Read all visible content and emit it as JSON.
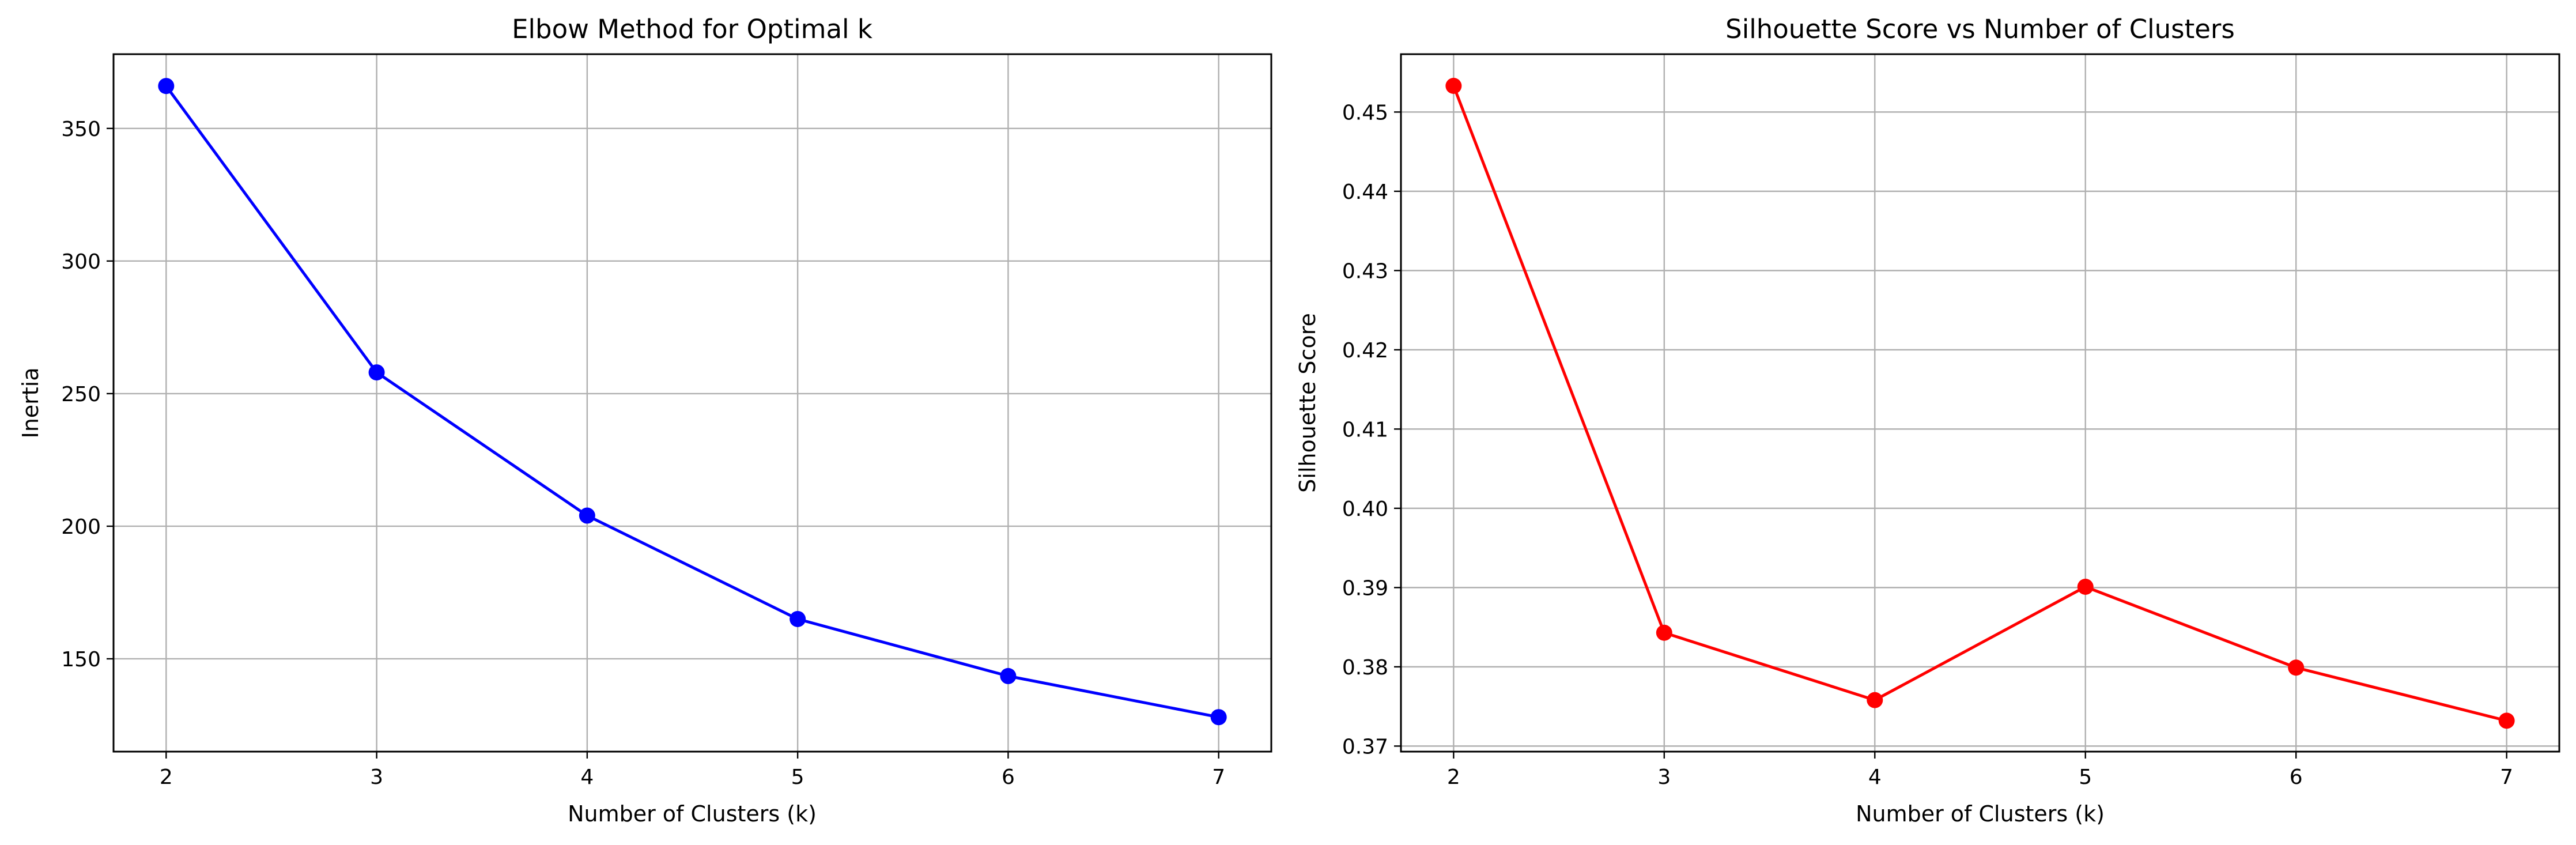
{
  "chart_data": [
    {
      "type": "line",
      "title": "Elbow Method for Optimal k",
      "xlabel": "Number of Clusters (k)",
      "ylabel": "Inertia",
      "xlim": [
        1.75,
        7.25
      ],
      "ylim": [
        115,
        378
      ],
      "xticks": [
        2,
        3,
        4,
        5,
        6,
        7
      ],
      "yticks": [
        150,
        200,
        250,
        300,
        350
      ],
      "ytick_labels": [
        "150",
        "200",
        "250",
        "300",
        "350"
      ],
      "grid": true,
      "series": [
        {
          "x": [
            2,
            3,
            4,
            5,
            6,
            7
          ],
          "values": [
            366,
            258,
            204,
            165,
            143.5,
            128
          ],
          "color": "#0000ff",
          "marker": "circle"
        }
      ]
    },
    {
      "type": "line",
      "title": "Silhouette Score vs Number of Clusters",
      "xlabel": "Number of Clusters (k)",
      "ylabel": "Silhouette Score",
      "xlim": [
        1.75,
        7.25
      ],
      "ylim": [
        0.3693,
        0.4573
      ],
      "xticks": [
        2,
        3,
        4,
        5,
        6,
        7
      ],
      "yticks": [
        0.37,
        0.38,
        0.39,
        0.4,
        0.41,
        0.42,
        0.43,
        0.44,
        0.45
      ],
      "ytick_labels": [
        "0.37",
        "0.38",
        "0.39",
        "0.40",
        "0.41",
        "0.42",
        "0.43",
        "0.44",
        "0.45"
      ],
      "grid": true,
      "series": [
        {
          "x": [
            2,
            3,
            4,
            5,
            6,
            7
          ],
          "values": [
            0.4533,
            0.3843,
            0.3758,
            0.3901,
            0.3799,
            0.3732
          ],
          "color": "#ff0000",
          "marker": "circle"
        }
      ]
    }
  ]
}
